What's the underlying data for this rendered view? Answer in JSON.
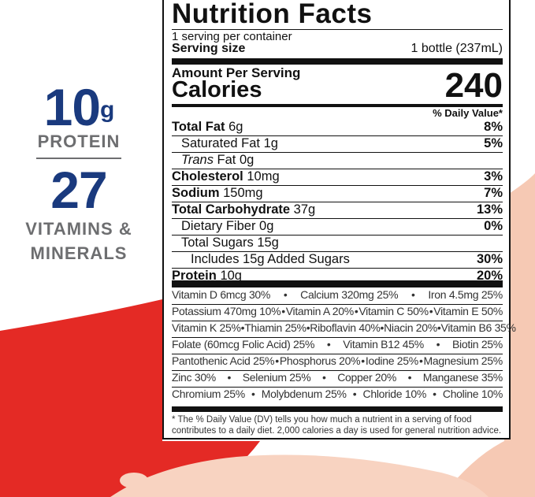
{
  "claims": {
    "protein_amount": "10",
    "protein_unit": "g",
    "protein_label": "PROTEIN",
    "vitamins_count": "27",
    "vitamins_label_1": "VITAMINS &",
    "vitamins_label_2": "MINERALS"
  },
  "colors": {
    "brand_blue": "#1a3a7e",
    "claim_gray": "#6d6e70",
    "red_swoosh": "#e42a25",
    "milk": "#f6c9b4"
  },
  "label": {
    "title": "Nutrition Facts",
    "servings": "1 serving per container",
    "serving_size_label": "Serving size",
    "serving_size_value": "1 bottle (237mL)",
    "amount_per_serving": "Amount Per Serving",
    "calories_label": "Calories",
    "calories_value": "240",
    "dv_header": "% Daily Value*",
    "nutrients": [
      {
        "name": "Total Fat",
        "amount": "6g",
        "dv": "8%",
        "bold": true,
        "indent": 0
      },
      {
        "name": "Saturated Fat",
        "amount": "1g",
        "dv": "5%",
        "bold": false,
        "indent": 1
      },
      {
        "name": "Trans",
        "amount": "Fat 0g",
        "dv": "",
        "bold": false,
        "indent": 1,
        "italic": true
      },
      {
        "name": "Cholesterol",
        "amount": "10mg",
        "dv": "3%",
        "bold": true,
        "indent": 0
      },
      {
        "name": "Sodium",
        "amount": "150mg",
        "dv": "7%",
        "bold": true,
        "indent": 0
      },
      {
        "name": "Total Carbohydrate",
        "amount": "37g",
        "dv": "13%",
        "bold": true,
        "indent": 0
      },
      {
        "name": "Dietary Fiber",
        "amount": "0g",
        "dv": "0%",
        "bold": false,
        "indent": 1
      },
      {
        "name": "Total Sugars",
        "amount": "15g",
        "dv": "",
        "bold": false,
        "indent": 1
      },
      {
        "name": "Includes 15g Added Sugars",
        "amount": "",
        "dv": "30%",
        "bold": false,
        "indent": 2
      },
      {
        "name": "Protein",
        "amount": "10g",
        "dv": "20%",
        "bold": true,
        "indent": 0
      }
    ],
    "vitamin_rows": [
      [
        "Vitamin D 6mcg 30%",
        "Calcium 320mg 25%",
        "Iron 4.5mg 25%"
      ],
      [
        "Potassium 470mg 10%",
        "Vitamin A 20%",
        "Vitamin C 50%",
        "Vitamin E 50%"
      ],
      [
        "Vitamin K 25%",
        "Thiamin 25%",
        "Riboflavin 40%",
        "Niacin 20%",
        "Vitamin B6 35%"
      ],
      [
        "Folate (60mcg Folic Acid) 25%",
        "Vitamin B12 45%",
        "Biotin 25%"
      ],
      [
        "Pantothenic Acid 25%",
        "Phosphorus 20%",
        "Iodine 25%",
        "Magnesium 25%"
      ],
      [
        "Zinc 30%",
        "Selenium 25%",
        "Copper 20%",
        "Manganese 35%"
      ],
      [
        "Chromium 25%",
        "Molybdenum 25%",
        "Chloride 10%",
        "Choline 10%"
      ]
    ],
    "footnote": "* The % Daily Value (DV) tells you how much a nutrient in a serving of food contributes to a daily diet. 2,000 calories a day is used for general nutrition advice."
  }
}
